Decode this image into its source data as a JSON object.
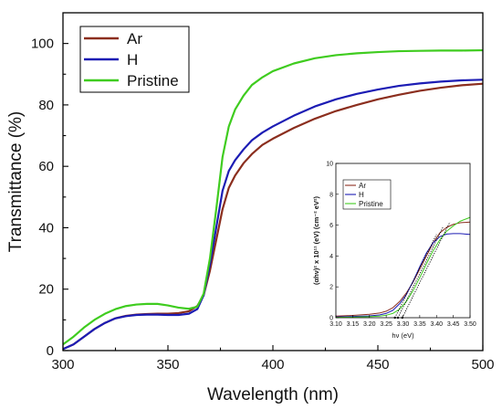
{
  "chart_data": [
    {
      "type": "line",
      "xlabel": "Wavelength (nm)",
      "ylabel": "Transmittance (%)",
      "xlim": [
        300,
        500
      ],
      "ylim": [
        0,
        110
      ],
      "x_ticks": [
        "300",
        "350",
        "400",
        "450",
        "500"
      ],
      "y_ticks": [
        "0",
        "20",
        "40",
        "60",
        "80",
        "100"
      ],
      "legend_position": "top-left",
      "grid": false,
      "series": [
        {
          "name": "Ar",
          "color": "#8b2e1e",
          "points": [
            [
              300,
              0.5
            ],
            [
              305,
              2
            ],
            [
              310,
              4.5
            ],
            [
              315,
              7
            ],
            [
              320,
              9
            ],
            [
              325,
              10.5
            ],
            [
              330,
              11.3
            ],
            [
              335,
              11.7
            ],
            [
              340,
              11.9
            ],
            [
              345,
              12
            ],
            [
              350,
              12
            ],
            [
              355,
              12.2
            ],
            [
              360,
              12.8
            ],
            [
              364,
              14.5
            ],
            [
              367,
              18
            ],
            [
              370,
              26
            ],
            [
              373,
              36
            ],
            [
              376,
              46
            ],
            [
              379,
              53
            ],
            [
              382,
              57
            ],
            [
              386,
              61
            ],
            [
              390,
              64
            ],
            [
              395,
              67
            ],
            [
              400,
              69
            ],
            [
              410,
              72.5
            ],
            [
              420,
              75.5
            ],
            [
              430,
              78
            ],
            [
              440,
              80
            ],
            [
              450,
              81.8
            ],
            [
              460,
              83.3
            ],
            [
              470,
              84.6
            ],
            [
              480,
              85.6
            ],
            [
              490,
              86.4
            ],
            [
              500,
              86.9
            ]
          ]
        },
        {
          "name": "H",
          "color": "#1c1cb4",
          "points": [
            [
              300,
              0.5
            ],
            [
              305,
              2
            ],
            [
              310,
              4.5
            ],
            [
              315,
              7
            ],
            [
              320,
              9
            ],
            [
              325,
              10.5
            ],
            [
              330,
              11.2
            ],
            [
              335,
              11.6
            ],
            [
              340,
              11.7
            ],
            [
              345,
              11.7
            ],
            [
              350,
              11.6
            ],
            [
              355,
              11.6
            ],
            [
              360,
              12
            ],
            [
              364,
              13.5
            ],
            [
              367,
              18
            ],
            [
              370,
              28
            ],
            [
              373,
              40
            ],
            [
              376,
              52
            ],
            [
              379,
              58.5
            ],
            [
              382,
              62
            ],
            [
              386,
              65.5
            ],
            [
              390,
              68.5
            ],
            [
              395,
              71
            ],
            [
              400,
              73
            ],
            [
              410,
              76.5
            ],
            [
              420,
              79.5
            ],
            [
              430,
              81.8
            ],
            [
              440,
              83.6
            ],
            [
              450,
              85
            ],
            [
              460,
              86.2
            ],
            [
              470,
              87
            ],
            [
              480,
              87.6
            ],
            [
              490,
              88
            ],
            [
              500,
              88.2
            ]
          ]
        },
        {
          "name": "Pristine",
          "color": "#3fcc1f",
          "points": [
            [
              300,
              2
            ],
            [
              305,
              4.5
            ],
            [
              310,
              7.5
            ],
            [
              315,
              10
            ],
            [
              320,
              12
            ],
            [
              325,
              13.5
            ],
            [
              330,
              14.5
            ],
            [
              335,
              15
            ],
            [
              340,
              15.2
            ],
            [
              345,
              15.2
            ],
            [
              350,
              14.7
            ],
            [
              355,
              14
            ],
            [
              360,
              13.6
            ],
            [
              364,
              14.3
            ],
            [
              367,
              18.5
            ],
            [
              370,
              30
            ],
            [
              373,
              46
            ],
            [
              376,
              63
            ],
            [
              379,
              73
            ],
            [
              382,
              78.5
            ],
            [
              386,
              83
            ],
            [
              390,
              86.5
            ],
            [
              395,
              89
            ],
            [
              400,
              91
            ],
            [
              410,
              93.5
            ],
            [
              420,
              95.2
            ],
            [
              430,
              96.2
            ],
            [
              440,
              96.8
            ],
            [
              450,
              97.2
            ],
            [
              460,
              97.5
            ],
            [
              470,
              97.6
            ],
            [
              480,
              97.7
            ],
            [
              490,
              97.7
            ],
            [
              500,
              97.8
            ]
          ]
        }
      ]
    },
    {
      "type": "line",
      "xlabel": "hν (eV)",
      "ylabel": "(αhν)² x 10¹¹ (eV) (cm⁻² eV²)",
      "xlim": [
        3.1,
        3.5
      ],
      "ylim": [
        0,
        10
      ],
      "x_ticks": [
        "3.10",
        "3.15",
        "3.20",
        "3.25",
        "3.30",
        "3.35",
        "3.40",
        "3.45",
        "3.50"
      ],
      "y_ticks": [
        "0",
        "2",
        "4",
        "6",
        "8",
        "10"
      ],
      "legend_position": "top-left",
      "grid": false,
      "series": [
        {
          "name": "Ar",
          "color": "#8b2e1e",
          "points": [
            [
              3.1,
              0.1
            ],
            [
              3.15,
              0.15
            ],
            [
              3.2,
              0.22
            ],
            [
              3.23,
              0.3
            ],
            [
              3.25,
              0.42
            ],
            [
              3.27,
              0.65
            ],
            [
              3.29,
              1.05
            ],
            [
              3.31,
              1.6
            ],
            [
              3.33,
              2.3
            ],
            [
              3.35,
              3.15
            ],
            [
              3.37,
              4
            ],
            [
              3.39,
              4.85
            ],
            [
              3.41,
              5.5
            ],
            [
              3.43,
              5.85
            ],
            [
              3.45,
              6.05
            ],
            [
              3.47,
              6.15
            ],
            [
              3.5,
              6.2
            ]
          ]
        },
        {
          "name": "H",
          "color": "#1c1cb4",
          "points": [
            [
              3.1,
              0.05
            ],
            [
              3.15,
              0.08
            ],
            [
              3.2,
              0.12
            ],
            [
              3.23,
              0.18
            ],
            [
              3.25,
              0.28
            ],
            [
              3.27,
              0.48
            ],
            [
              3.29,
              0.9
            ],
            [
              3.31,
              1.5
            ],
            [
              3.33,
              2.35
            ],
            [
              3.35,
              3.3
            ],
            [
              3.37,
              4.2
            ],
            [
              3.39,
              4.85
            ],
            [
              3.41,
              5.25
            ],
            [
              3.43,
              5.42
            ],
            [
              3.45,
              5.45
            ],
            [
              3.47,
              5.45
            ],
            [
              3.5,
              5.4
            ]
          ]
        },
        {
          "name": "Pristine",
          "color": "#3fcc1f",
          "points": [
            [
              3.1,
              0.02
            ],
            [
              3.15,
              0.04
            ],
            [
              3.2,
              0.07
            ],
            [
              3.23,
              0.1
            ],
            [
              3.25,
              0.16
            ],
            [
              3.27,
              0.28
            ],
            [
              3.29,
              0.55
            ],
            [
              3.31,
              1.05
            ],
            [
              3.33,
              1.75
            ],
            [
              3.35,
              2.6
            ],
            [
              3.37,
              3.5
            ],
            [
              3.39,
              4.35
            ],
            [
              3.41,
              5.05
            ],
            [
              3.43,
              5.6
            ],
            [
              3.45,
              5.95
            ],
            [
              3.47,
              6.25
            ],
            [
              3.5,
              6.5
            ]
          ]
        }
      ],
      "fit_lines": [
        {
          "style": "dotted",
          "points": [
            [
              3.276,
              0
            ],
            [
              3.4,
              5.4
            ]
          ]
        },
        {
          "style": "dotted",
          "points": [
            [
              3.285,
              0
            ],
            [
              3.42,
              5.9
            ]
          ]
        },
        {
          "style": "dotted",
          "points": [
            [
              3.298,
              0
            ],
            [
              3.44,
              6.2
            ]
          ]
        }
      ]
    }
  ]
}
